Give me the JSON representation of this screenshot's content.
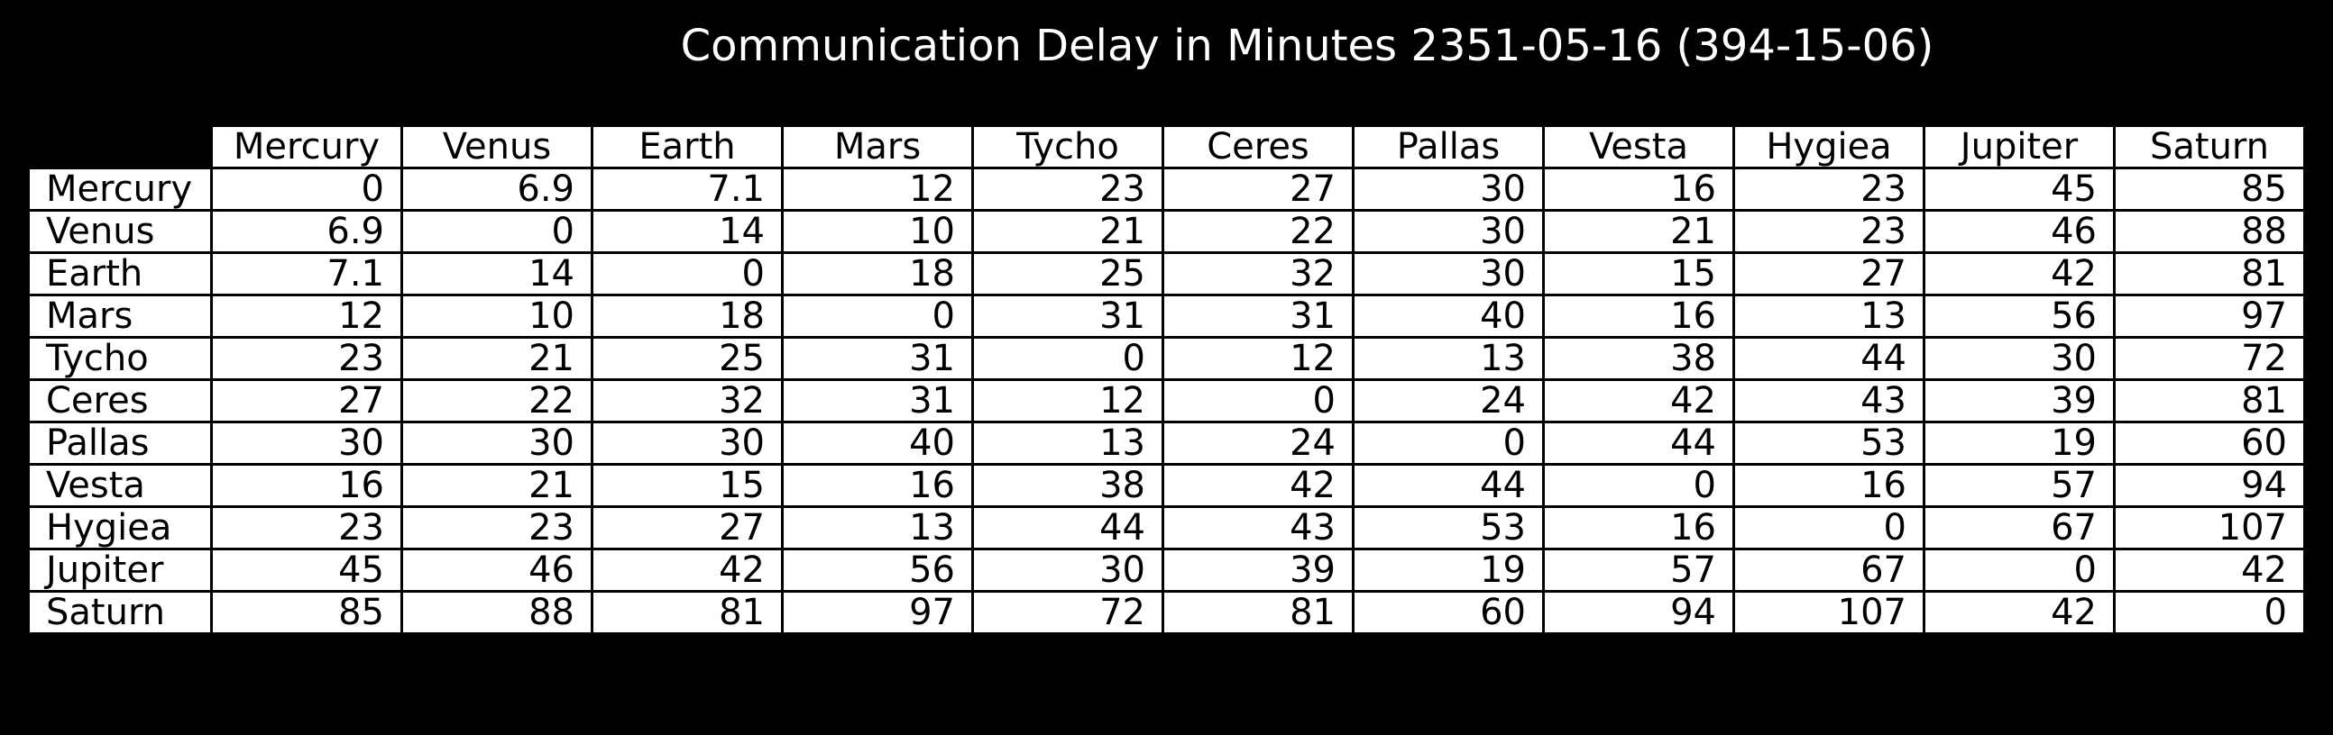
{
  "chart_data": {
    "type": "table",
    "title": "Communication Delay in Minutes 2351-05-16 (394-15-06)",
    "columns": [
      "Mercury",
      "Venus",
      "Earth",
      "Mars",
      "Tycho",
      "Ceres",
      "Pallas",
      "Vesta",
      "Hygiea",
      "Jupiter",
      "Saturn"
    ],
    "rows": [
      {
        "label": "Mercury",
        "values": [
          "0",
          "6.9",
          "7.1",
          "12",
          "23",
          "27",
          "30",
          "16",
          "23",
          "45",
          "85"
        ]
      },
      {
        "label": "Venus",
        "values": [
          "6.9",
          "0",
          "14",
          "10",
          "21",
          "22",
          "30",
          "21",
          "23",
          "46",
          "88"
        ]
      },
      {
        "label": "Earth",
        "values": [
          "7.1",
          "14",
          "0",
          "18",
          "25",
          "32",
          "30",
          "15",
          "27",
          "42",
          "81"
        ]
      },
      {
        "label": "Mars",
        "values": [
          "12",
          "10",
          "18",
          "0",
          "31",
          "31",
          "40",
          "16",
          "13",
          "56",
          "97"
        ]
      },
      {
        "label": "Tycho",
        "values": [
          "23",
          "21",
          "25",
          "31",
          "0",
          "12",
          "13",
          "38",
          "44",
          "30",
          "72"
        ]
      },
      {
        "label": "Ceres",
        "values": [
          "27",
          "22",
          "32",
          "31",
          "12",
          "0",
          "24",
          "42",
          "43",
          "39",
          "81"
        ]
      },
      {
        "label": "Pallas",
        "values": [
          "30",
          "30",
          "30",
          "40",
          "13",
          "24",
          "0",
          "44",
          "53",
          "19",
          "60"
        ]
      },
      {
        "label": "Vesta",
        "values": [
          "16",
          "21",
          "15",
          "16",
          "38",
          "42",
          "44",
          "0",
          "16",
          "57",
          "94"
        ]
      },
      {
        "label": "Hygiea",
        "values": [
          "23",
          "23",
          "27",
          "13",
          "44",
          "43",
          "53",
          "16",
          "0",
          "67",
          "107"
        ]
      },
      {
        "label": "Jupiter",
        "values": [
          "45",
          "46",
          "42",
          "56",
          "30",
          "39",
          "19",
          "57",
          "67",
          "0",
          "42"
        ]
      },
      {
        "label": "Saturn",
        "values": [
          "85",
          "88",
          "81",
          "97",
          "72",
          "81",
          "60",
          "94",
          "107",
          "42",
          "0"
        ]
      }
    ]
  },
  "colors": {
    "background": "#000000",
    "title_text": "#ffffff",
    "cell_background": "#ffffff",
    "cell_text": "#000000",
    "cell_border": "#000000"
  }
}
